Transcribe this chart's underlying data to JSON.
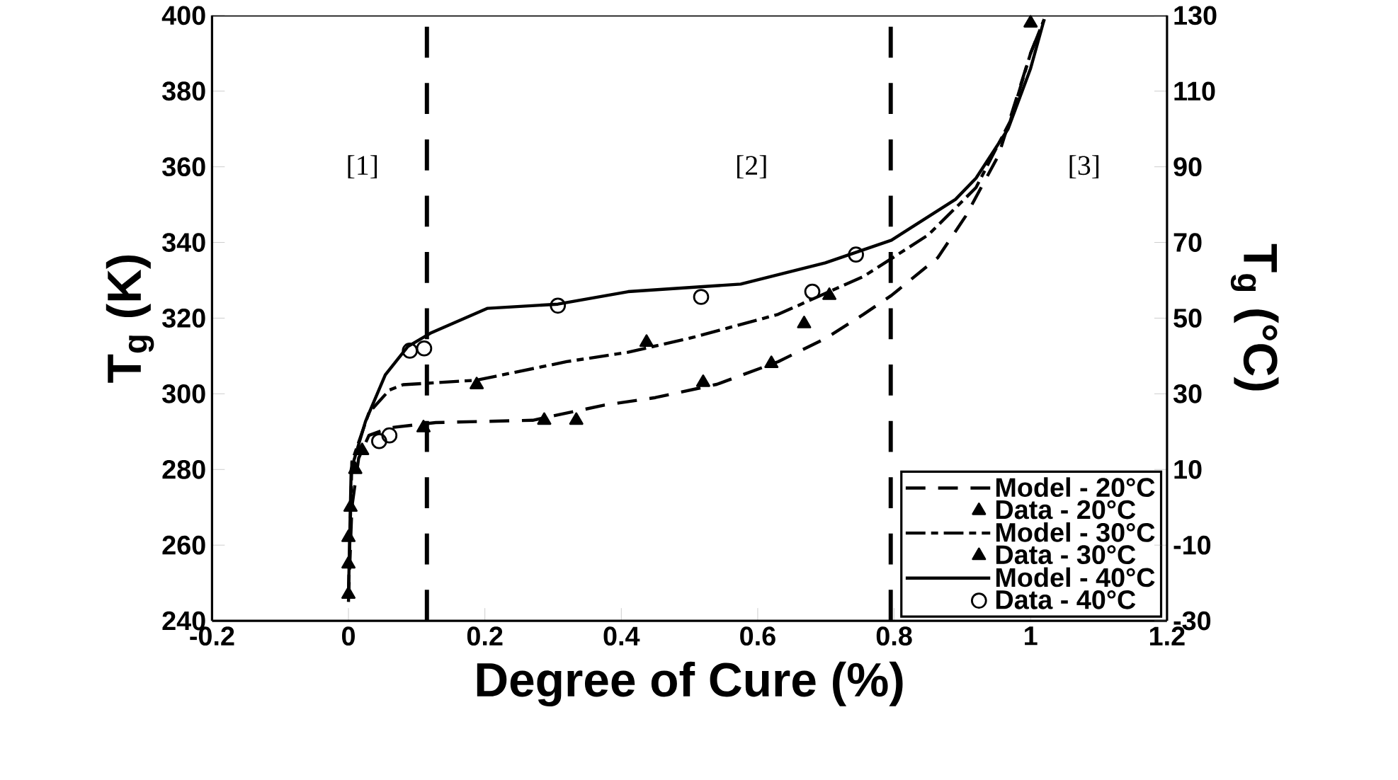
{
  "chart_data": {
    "type": "line",
    "xlabel": "Degree of Cure (%)",
    "ylabel": "T$_{g}$ (K)",
    "y2label": "T$_{g}$ (°C)",
    "xlim": [
      -0.2,
      1.2
    ],
    "xticks": [
      -0.2,
      0,
      0.2,
      0.4,
      0.6,
      0.8,
      1,
      1.2
    ],
    "ylim": [
      240,
      400
    ],
    "yticks": [
      240,
      260,
      280,
      300,
      320,
      340,
      360,
      380,
      400
    ],
    "y2lim": [
      -30,
      130
    ],
    "y2ticks": [
      -30,
      -10,
      10,
      30,
      50,
      70,
      90,
      110,
      130
    ],
    "legend": "bottom right",
    "series": [
      {
        "name": "Model - 20°C",
        "color": "#000000",
        "line_style": "dashed",
        "marker": "none",
        "x": [
          0,
          0.005,
          0.015,
          0.03,
          0.06,
          0.128,
          0.27,
          0.375,
          0.45,
          0.54,
          0.63,
          0.7,
          0.755,
          0.796,
          0.864,
          0.905,
          0.953,
          1.0,
          1.02
        ],
        "values": [
          245,
          270,
          283,
          289,
          291,
          292.4,
          293,
          297,
          299,
          302.5,
          308.5,
          314.7,
          321,
          326,
          336,
          347,
          363,
          390,
          399
        ]
      },
      {
        "name": "Data - 20°C",
        "type": "scatter",
        "color": "#000000",
        "marker": "triangle",
        "x": [
          0,
          0,
          0,
          0.003,
          0.01,
          0.02,
          0.11,
          0.287,
          0.334,
          0.52,
          0.62,
          0.705,
          1.0
        ],
        "values": [
          247,
          255,
          262,
          270,
          280,
          285,
          291,
          293,
          293,
          303,
          308,
          326,
          398
        ]
      },
      {
        "name": "Model - 30°C",
        "color": "#000000",
        "line_style": "dashdot",
        "marker": "none",
        "x": [
          0,
          0.005,
          0.03,
          0.06,
          0.08,
          0.188,
          0.32,
          0.41,
          0.507,
          0.63,
          0.755,
          0.85,
          0.92,
          0.97,
          1.0,
          1.02
        ],
        "values": [
          247,
          282,
          295,
          301,
          302.4,
          303.6,
          308.5,
          311,
          315,
          321,
          331,
          342,
          354.5,
          372,
          390,
          399
        ]
      },
      {
        "name": "Data - 30°C",
        "type": "scatter",
        "color": "#000000",
        "marker": "triangle",
        "x": [
          0.188,
          0.437,
          0.668
        ],
        "values": [
          302.4,
          313.6,
          318.5
        ]
      },
      {
        "name": "Model - 40°C",
        "color": "#000000",
        "line_style": "solid",
        "marker": "none",
        "x": [
          0,
          0.004,
          0.025,
          0.054,
          0.087,
          0.12,
          0.204,
          0.307,
          0.41,
          0.575,
          0.699,
          0.796,
          0.89,
          0.92,
          0.967,
          1.0,
          1.02
        ],
        "values": [
          246.7,
          280,
          292.7,
          305,
          312.5,
          316,
          322.6,
          323.7,
          327,
          329,
          334.6,
          340.6,
          351.4,
          357,
          370,
          386,
          399
        ]
      },
      {
        "name": "Data - 40°C",
        "type": "scatter",
        "color": "#000000",
        "marker": "circle",
        "x": [
          0.045,
          0.06,
          0.09,
          0.111,
          0.307,
          0.517,
          0.68,
          0.744
        ],
        "values": [
          287.5,
          289,
          311.4,
          312,
          323.3,
          325.6,
          327,
          336.8
        ]
      }
    ],
    "ref_lines": [
      {
        "axis": "x",
        "value": 0.115,
        "color": "#000000",
        "line_style": "dashed"
      },
      {
        "axis": "x",
        "value": 0.795,
        "color": "#000000",
        "line_style": "dashed"
      }
    ],
    "annotations": [
      "[1]",
      "[2]",
      "[3]"
    ]
  }
}
